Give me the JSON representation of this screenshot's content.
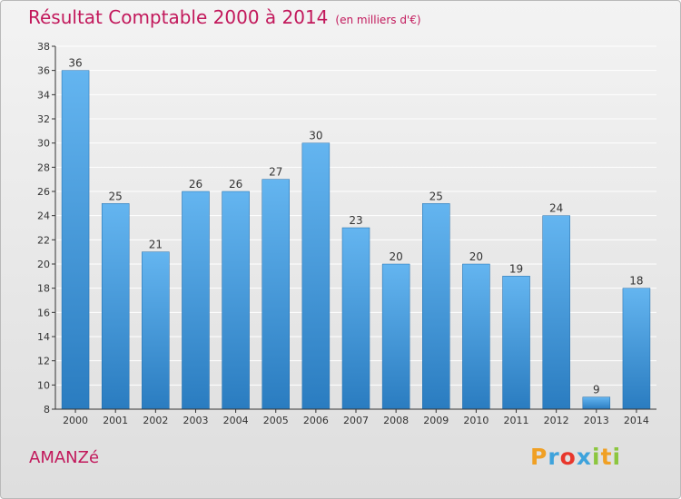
{
  "title": "Résultat Comptable 2000 à 2014",
  "unit": "(en milliers d'€)",
  "commune": "AMANZé",
  "logo": {
    "text": "Proxiti",
    "letters": [
      {
        "ch": "P",
        "color": "#f0a024"
      },
      {
        "ch": "r",
        "color": "#3ea3dc"
      },
      {
        "ch": "o",
        "color": "#e8372c"
      },
      {
        "ch": "x",
        "color": "#3ea3dc"
      },
      {
        "ch": "i",
        "color": "#8cc63f"
      },
      {
        "ch": "t",
        "color": "#f0a024"
      },
      {
        "ch": "i",
        "color": "#8cc63f"
      }
    ]
  },
  "colors": {
    "title": "#c2185b",
    "bar_light": "#64b5f0",
    "bar_dark": "#2a7cc0",
    "grid": "#ffffff",
    "axis": "#333333"
  },
  "chart_data": {
    "type": "bar",
    "categories": [
      "2000",
      "2001",
      "2002",
      "2003",
      "2004",
      "2005",
      "2006",
      "2007",
      "2008",
      "2009",
      "2010",
      "2011",
      "2012",
      "2013",
      "2014"
    ],
    "values": [
      36,
      25,
      21,
      26,
      26,
      27,
      30,
      23,
      20,
      25,
      20,
      19,
      24,
      9,
      18
    ],
    "ylim": [
      8,
      38
    ],
    "yticks": [
      8,
      10,
      12,
      14,
      16,
      18,
      20,
      22,
      24,
      26,
      28,
      30,
      32,
      34,
      36,
      38
    ],
    "grid": true,
    "xlabel": "",
    "ylabel": ""
  }
}
